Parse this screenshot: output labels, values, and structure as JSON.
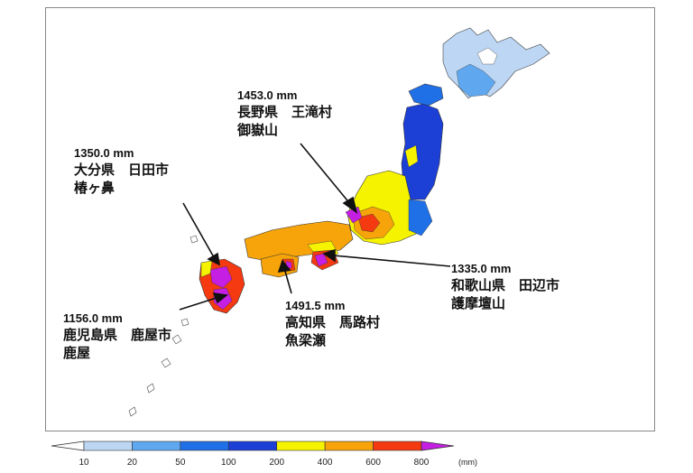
{
  "callouts": [
    {
      "amount": "1453.0 mm",
      "prefecture": "長野県　王滝村",
      "station": "御嶽山"
    },
    {
      "amount": "1350.0 mm",
      "prefecture": "大分県　日田市",
      "station": "椿ヶ鼻"
    },
    {
      "amount": "1335.0 mm",
      "prefecture": "和歌山県　田辺市",
      "station": "護摩壇山"
    },
    {
      "amount": "1491.5 mm",
      "prefecture": "高知県　馬路村",
      "station": "魚梁瀬"
    },
    {
      "amount": "1156.0 mm",
      "prefecture": "鹿児島県　鹿屋市",
      "station": "鹿屋"
    }
  ],
  "legend": {
    "ticks": [
      "10",
      "20",
      "50",
      "100",
      "200",
      "400",
      "600",
      "800"
    ],
    "unit": "(mm)",
    "colors": [
      "#ffffff",
      "#bcd6f3",
      "#5fa7ee",
      "#1f6fe6",
      "#1c3fd6",
      "#f6f300",
      "#f6a40a",
      "#f53a12",
      "#c41fe3"
    ]
  }
}
